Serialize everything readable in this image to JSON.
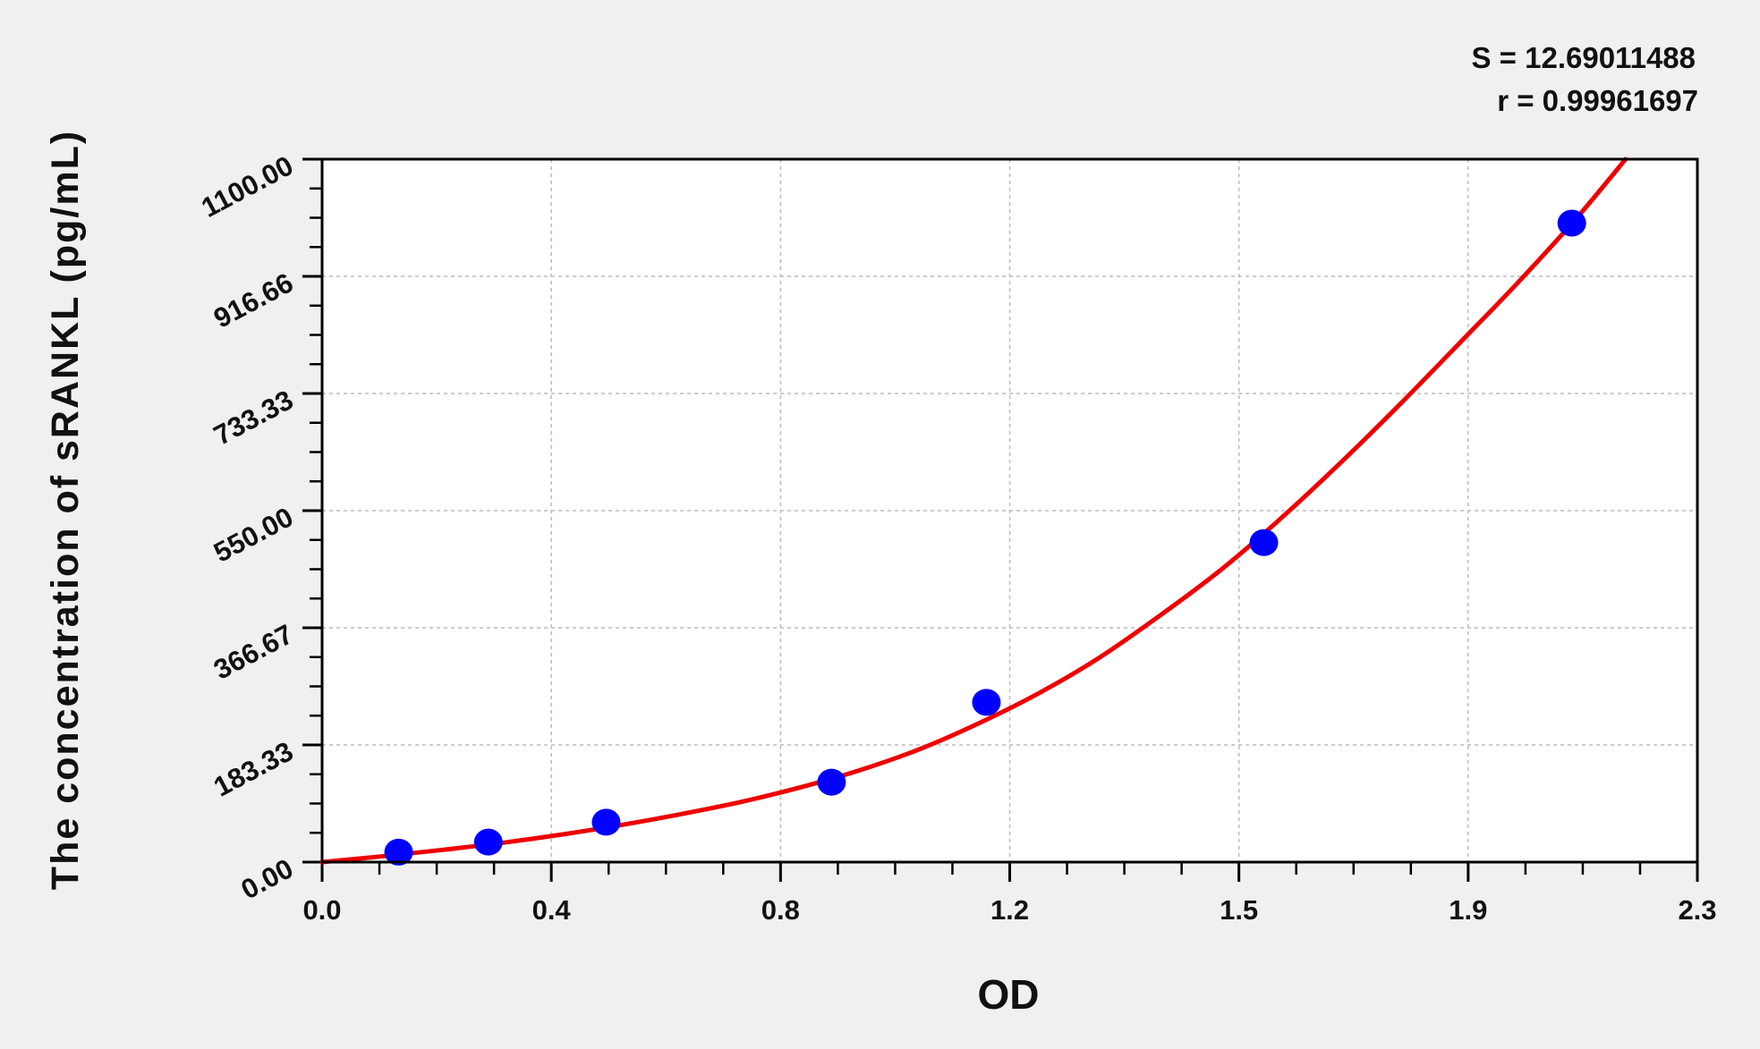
{
  "chart_data": {
    "type": "scatter",
    "title": "",
    "xlabel": "OD",
    "ylabel": "The concentration of sRANKL (pg/mL)",
    "xlim": [
      0,
      2.3
    ],
    "ylim": [
      0,
      1100
    ],
    "x_tick_values": [
      0,
      0.3833,
      0.7667,
      1.15,
      1.5333,
      1.9167,
      2.3
    ],
    "x_tick_labels": [
      "0.0",
      "0.4",
      "0.8",
      "1.2",
      "1.5",
      "1.9",
      "2.3"
    ],
    "y_tick_values": [
      0,
      183.33,
      366.67,
      550,
      733.33,
      916.66,
      1100
    ],
    "y_tick_labels": [
      "0.00",
      "183.33",
      "366.67",
      "550.00",
      "733.33",
      "916.66",
      "1100.00"
    ],
    "grid": true,
    "annotations": [
      "S = 12.69011488",
      "r = 0.99961697"
    ],
    "points": {
      "x": [
        0.128,
        0.278,
        0.475,
        0.852,
        1.111,
        1.575,
        2.09
      ],
      "y": [
        15.6,
        31.25,
        62.5,
        125,
        250,
        500,
        1000
      ],
      "color": "#0000ff"
    },
    "fit_curve": {
      "x": [
        0,
        0.1,
        0.2,
        0.3,
        0.4,
        0.5,
        0.6,
        0.7,
        0.8,
        0.9,
        1.0,
        1.1,
        1.2,
        1.3,
        1.4,
        1.5,
        1.6,
        1.7,
        1.8,
        1.9,
        2.0,
        2.1,
        2.18
      ],
      "y": [
        0,
        9,
        19,
        30,
        43,
        58,
        75,
        94,
        117,
        144,
        177,
        218,
        265,
        320,
        385,
        455,
        535,
        622,
        714,
        810,
        907,
        1010,
        1100
      ],
      "color": "#ee0000"
    },
    "background": "#f0f0f0",
    "plot_background": "#ffffff"
  }
}
